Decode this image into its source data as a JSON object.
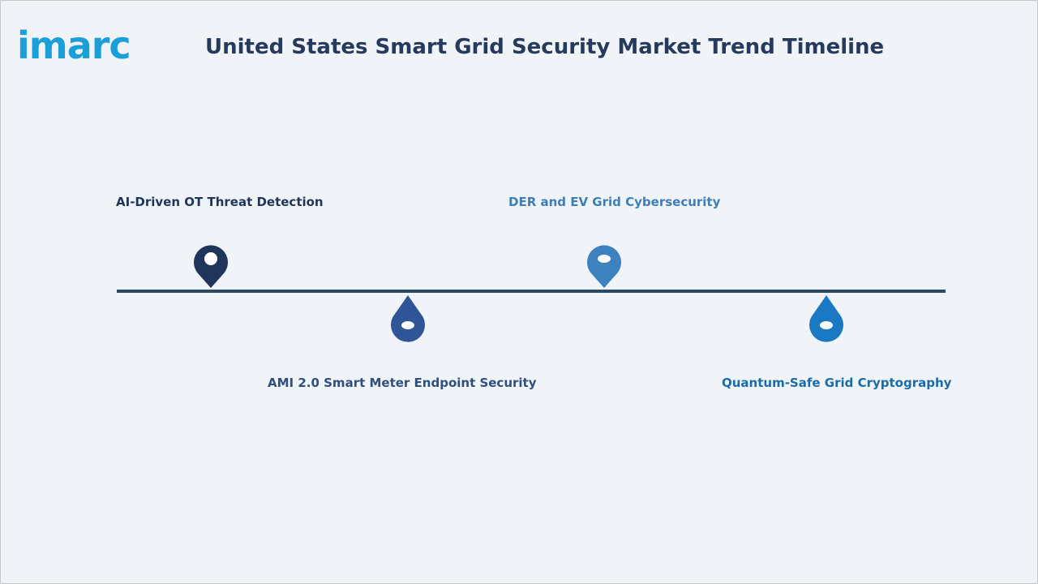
{
  "header": {
    "logo": "imarc",
    "title": "United States Smart Grid Security Market Trend Timeline"
  },
  "timeline": {
    "items": [
      {
        "label": "AI-Driven OT Threat Detection"
      },
      {
        "label": "AMI 2.0 Smart Meter Endpoint Security"
      },
      {
        "label": "DER and EV Grid Cybersecurity"
      },
      {
        "label": "Quantum-Safe Grid Cryptography"
      }
    ]
  }
}
